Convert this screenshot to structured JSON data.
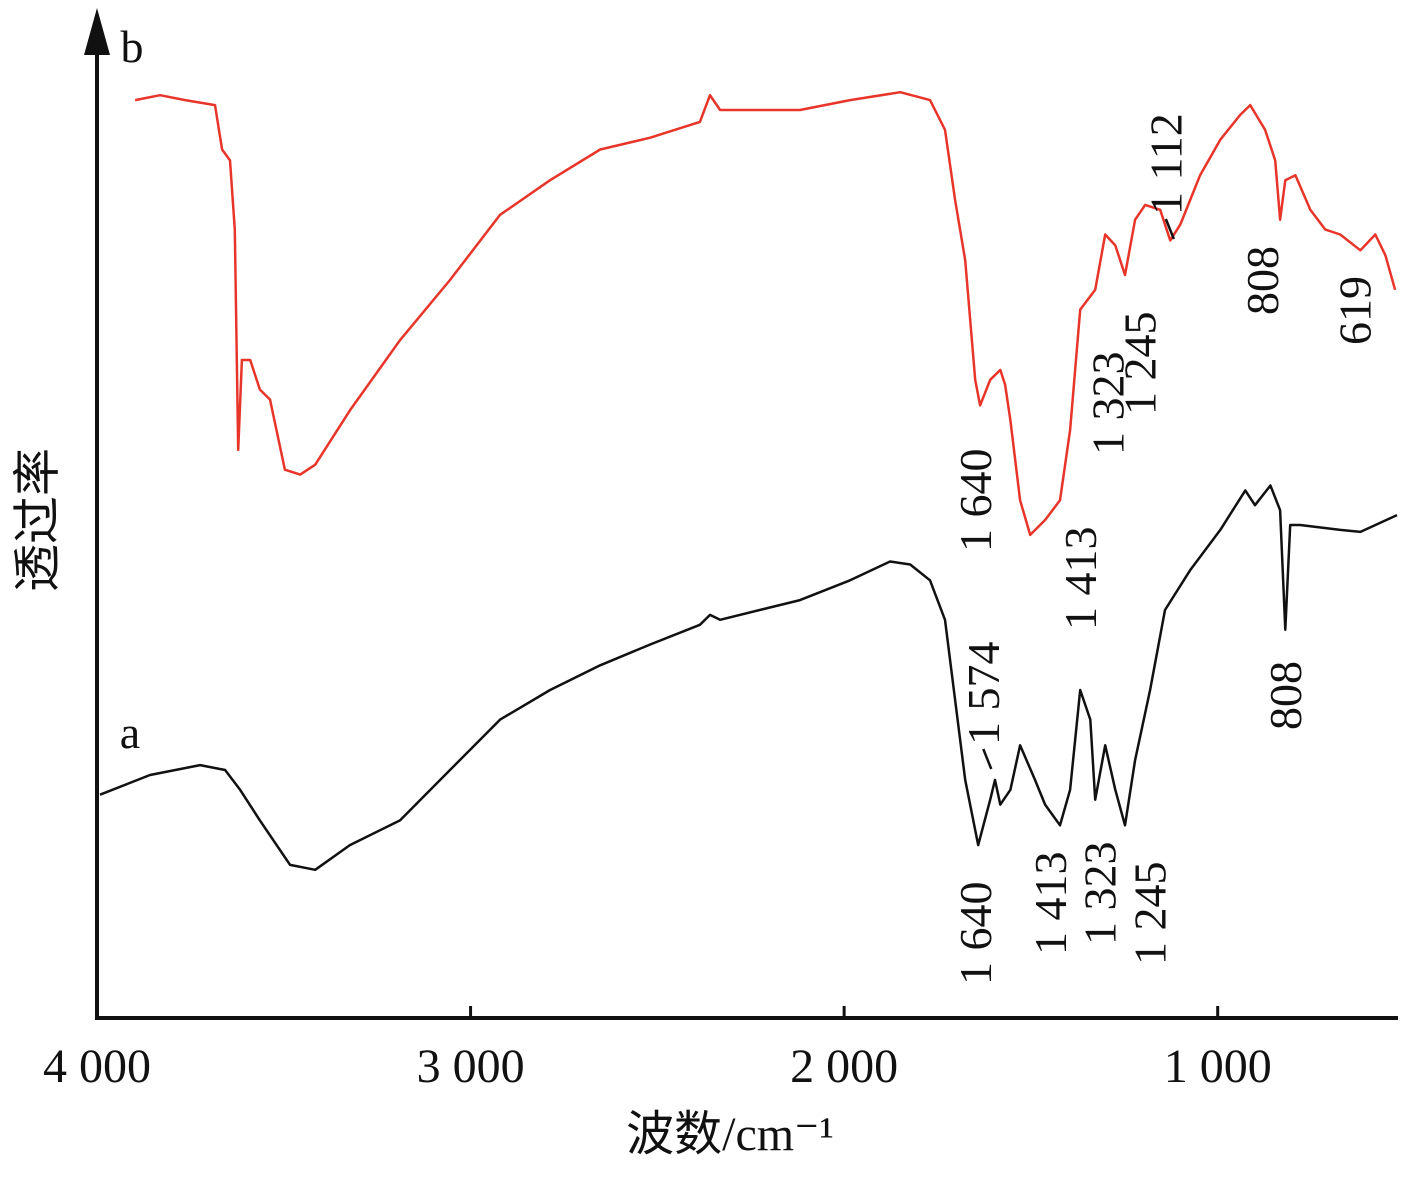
{
  "chart_data": {
    "type": "line",
    "xlabel": "波数/cm⁻¹",
    "ylabel": "透过率",
    "xlim": [
      4000,
      520
    ],
    "ylim": [
      0,
      100
    ],
    "xticks": [
      {
        "value": 4000,
        "label": "4 000"
      },
      {
        "value": 3000,
        "label": "3 000"
      },
      {
        "value": 2000,
        "label": "2 000"
      },
      {
        "value": 1000,
        "label": "1 000"
      }
    ],
    "series": [
      {
        "name": "b",
        "color": "#e8352a",
        "x": [
          3898,
          3831,
          3764,
          3684,
          3665,
          3644,
          3631,
          3622,
          3612,
          3590,
          3564,
          3537,
          3497,
          3456,
          3416,
          3323,
          3189,
          3055,
          2921,
          2787,
          2653,
          2519,
          2386,
          2359,
          2332,
          2118,
          1984,
          1850,
          1770,
          1730,
          1703,
          1676,
          1649,
          1636,
          1609,
          1582,
          1569,
          1555,
          1529,
          1502,
          1462,
          1422,
          1395,
          1368,
          1328,
          1301,
          1274,
          1248,
          1221,
          1194,
          1154,
          1127,
          1100,
          1047,
          993,
          940,
          913,
          873,
          846,
          833,
          819,
          792,
          752,
          712,
          672,
          618,
          578,
          551,
          525
        ],
        "values": [
          92.9,
          93.4,
          92.9,
          92.4,
          87.9,
          86.8,
          79.8,
          57.5,
          66.6,
          66.6,
          63.6,
          62.6,
          55.5,
          55.0,
          56.0,
          61.5,
          68.6,
          74.7,
          81.3,
          84.8,
          87.9,
          89.1,
          90.7,
          93.4,
          91.9,
          91.9,
          92.9,
          93.7,
          92.9,
          89.9,
          82.8,
          76.7,
          64.6,
          62.0,
          64.6,
          65.6,
          64.1,
          60.5,
          52.4,
          48.9,
          50.4,
          52.4,
          59.5,
          71.7,
          73.7,
          79.3,
          78.2,
          75.2,
          80.8,
          82.3,
          81.8,
          78.7,
          80.3,
          85.3,
          88.9,
          91.4,
          92.4,
          89.9,
          86.8,
          80.8,
          84.8,
          85.3,
          81.8,
          79.8,
          79.3,
          77.7,
          79.3,
          77.2,
          73.7
        ],
        "annotations": [
          {
            "value": 1640,
            "label": "1 640"
          },
          {
            "value": 1413,
            "label": "1 413"
          },
          {
            "value": 1323,
            "label": "1 323"
          },
          {
            "value": 1245,
            "label": "1 245"
          },
          {
            "value": 1112,
            "label": "1 112"
          },
          {
            "value": 808,
            "label": "808"
          },
          {
            "value": 619,
            "label": "619"
          }
        ]
      },
      {
        "name": "a",
        "color": "#111111",
        "x": [
          3992,
          3858,
          3724,
          3657,
          3617,
          3564,
          3483,
          3416,
          3323,
          3189,
          3055,
          2921,
          2787,
          2653,
          2519,
          2386,
          2359,
          2332,
          2118,
          1984,
          1877,
          1823,
          1770,
          1730,
          1703,
          1676,
          1641,
          1609,
          1596,
          1582,
          1555,
          1529,
          1489,
          1462,
          1422,
          1395,
          1368,
          1341,
          1328,
          1301,
          1274,
          1248,
          1221,
          1181,
          1141,
          1074,
          993,
          926,
          900,
          859,
          833,
          819,
          806,
          779,
          672,
          618,
          520
        ],
        "values": [
          22.6,
          24.6,
          25.6,
          25.1,
          23.1,
          20.0,
          15.5,
          15.0,
          17.5,
          20.0,
          25.1,
          30.2,
          33.2,
          35.7,
          37.8,
          39.8,
          40.8,
          40.3,
          42.3,
          44.3,
          46.2,
          45.9,
          44.3,
          40.3,
          32.2,
          24.1,
          17.5,
          22.1,
          24.1,
          21.6,
          23.1,
          27.6,
          24.1,
          21.6,
          19.5,
          23.1,
          33.2,
          30.2,
          22.1,
          27.6,
          23.1,
          19.5,
          26.1,
          33.2,
          41.3,
          45.3,
          49.4,
          53.4,
          51.9,
          53.9,
          51.4,
          39.3,
          49.9,
          49.9,
          49.4,
          49.2,
          50.9
        ],
        "annotations": [
          {
            "value": 1640,
            "label": "1 640"
          },
          {
            "value": 1574,
            "label": "1 574"
          },
          {
            "value": 1413,
            "label": "1 413"
          },
          {
            "value": 1323,
            "label": "1 323"
          },
          {
            "value": 1245,
            "label": "1 245"
          },
          {
            "value": 808,
            "label": "808"
          }
        ]
      }
    ]
  }
}
